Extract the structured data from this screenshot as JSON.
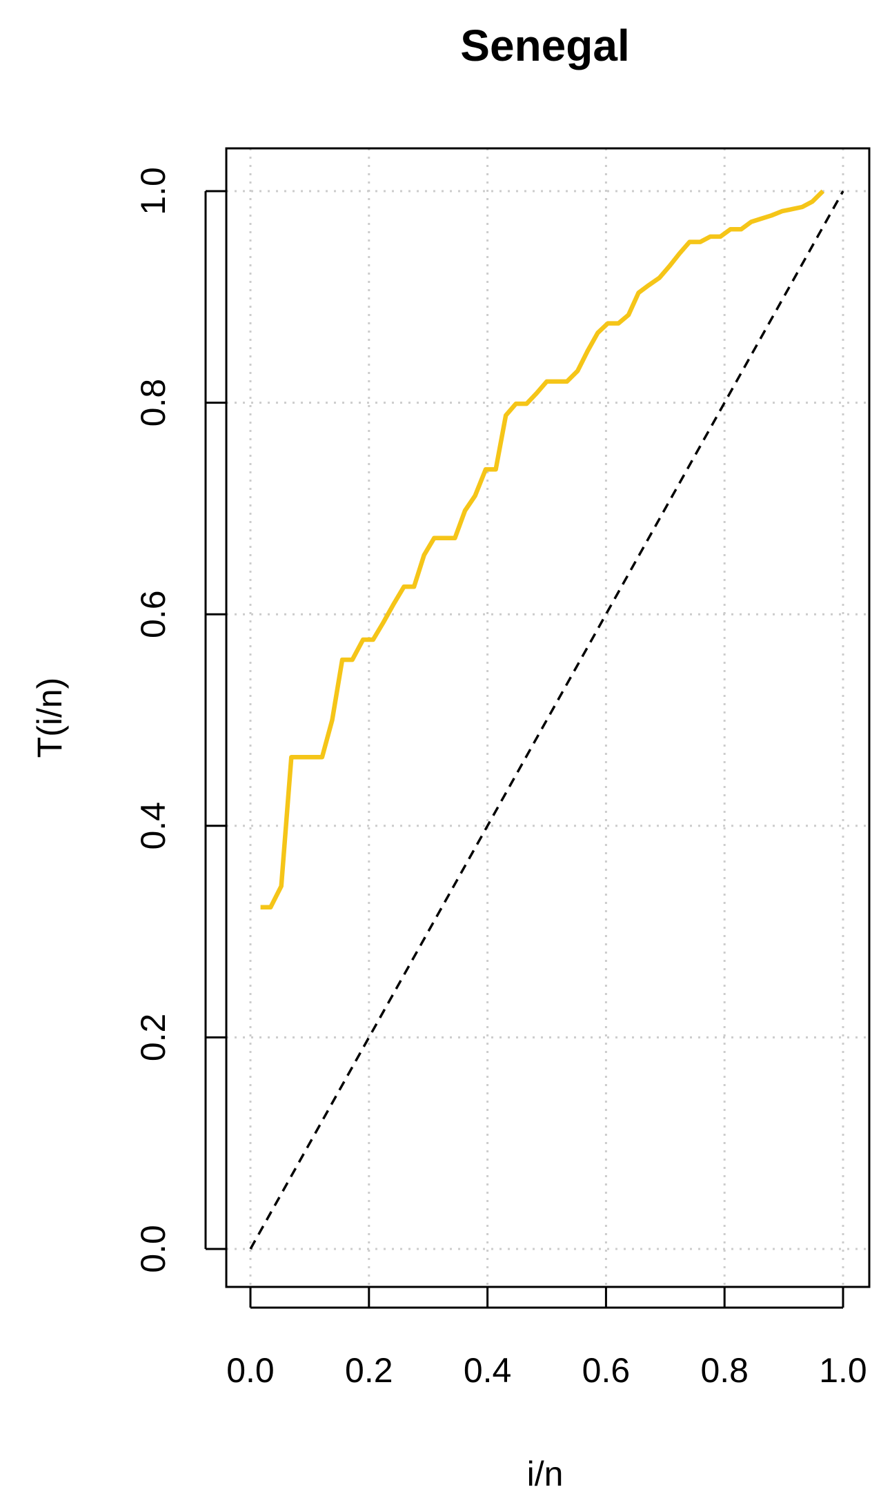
{
  "chart_data": {
    "type": "line",
    "title": "Senegal",
    "xlabel": "i/n",
    "ylabel": "T(i/n)",
    "xlim": [
      0.0,
      1.0
    ],
    "ylim": [
      0.0,
      1.0
    ],
    "x_ticks": [
      "0.0",
      "0.2",
      "0.4",
      "0.6",
      "0.8",
      "1.0"
    ],
    "y_ticks": [
      "0.0",
      "0.2",
      "0.4",
      "0.6",
      "0.8",
      "1.0"
    ],
    "grid": true,
    "series": [
      {
        "color": "#F5C518",
        "style": "solid",
        "points": [
          [
            0.017,
            0.323
          ],
          [
            0.034,
            0.323
          ],
          [
            0.052,
            0.343
          ],
          [
            0.069,
            0.465
          ],
          [
            0.086,
            0.465
          ],
          [
            0.103,
            0.465
          ],
          [
            0.121,
            0.465
          ],
          [
            0.138,
            0.5
          ],
          [
            0.155,
            0.557
          ],
          [
            0.172,
            0.557
          ],
          [
            0.19,
            0.576
          ],
          [
            0.207,
            0.576
          ],
          [
            0.224,
            0.592
          ],
          [
            0.241,
            0.609
          ],
          [
            0.259,
            0.626
          ],
          [
            0.276,
            0.626
          ],
          [
            0.293,
            0.656
          ],
          [
            0.31,
            0.672
          ],
          [
            0.328,
            0.672
          ],
          [
            0.345,
            0.672
          ],
          [
            0.362,
            0.698
          ],
          [
            0.379,
            0.712
          ],
          [
            0.397,
            0.737
          ],
          [
            0.414,
            0.737
          ],
          [
            0.431,
            0.788
          ],
          [
            0.448,
            0.799
          ],
          [
            0.466,
            0.799
          ],
          [
            0.483,
            0.809
          ],
          [
            0.5,
            0.82
          ],
          [
            0.517,
            0.82
          ],
          [
            0.534,
            0.82
          ],
          [
            0.552,
            0.83
          ],
          [
            0.569,
            0.849
          ],
          [
            0.586,
            0.866
          ],
          [
            0.603,
            0.875
          ],
          [
            0.621,
            0.875
          ],
          [
            0.638,
            0.883
          ],
          [
            0.655,
            0.904
          ],
          [
            0.672,
            0.911
          ],
          [
            0.69,
            0.918
          ],
          [
            0.707,
            0.929
          ],
          [
            0.724,
            0.941
          ],
          [
            0.741,
            0.952
          ],
          [
            0.759,
            0.952
          ],
          [
            0.776,
            0.957
          ],
          [
            0.793,
            0.957
          ],
          [
            0.81,
            0.964
          ],
          [
            0.828,
            0.964
          ],
          [
            0.845,
            0.971
          ],
          [
            0.862,
            0.974
          ],
          [
            0.879,
            0.977
          ],
          [
            0.897,
            0.981
          ],
          [
            0.914,
            0.983
          ],
          [
            0.931,
            0.985
          ],
          [
            0.948,
            0.99
          ],
          [
            0.966,
            1.0
          ]
        ]
      },
      {
        "color": "#000000",
        "style": "dashed",
        "points": [
          [
            0.0,
            0.0
          ],
          [
            1.0,
            1.0
          ]
        ]
      }
    ]
  }
}
